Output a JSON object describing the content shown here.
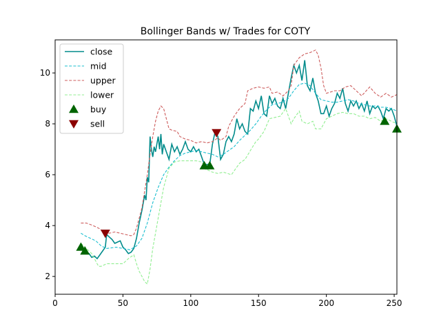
{
  "chart_data": {
    "type": "line",
    "title": "Bollinger Bands w/ Trades for COTY",
    "xlabel": "",
    "ylabel": "",
    "xlim": [
      0,
      252
    ],
    "ylim": [
      1.3,
      11.3
    ],
    "xticks": [
      0,
      50,
      100,
      150,
      200,
      250
    ],
    "yticks": [
      2,
      4,
      6,
      8,
      10
    ],
    "grid": false,
    "legend_position": "top-left",
    "series": [
      {
        "name": "close",
        "color": "#008b8b",
        "style": "solid",
        "points": [
          [
            19,
            3.1
          ],
          [
            21,
            3.05
          ],
          [
            23,
            2.95
          ],
          [
            25,
            2.9
          ],
          [
            27,
            2.75
          ],
          [
            29,
            2.8
          ],
          [
            31,
            2.7
          ],
          [
            33,
            2.85
          ],
          [
            35,
            3.0
          ],
          [
            37,
            3.15
          ],
          [
            38,
            3.65
          ],
          [
            40,
            3.55
          ],
          [
            42,
            3.45
          ],
          [
            44,
            3.3
          ],
          [
            46,
            3.35
          ],
          [
            48,
            3.4
          ],
          [
            50,
            3.15
          ],
          [
            52,
            3.05
          ],
          [
            54,
            2.9
          ],
          [
            56,
            2.95
          ],
          [
            58,
            3.1
          ],
          [
            60,
            3.5
          ],
          [
            62,
            4.1
          ],
          [
            64,
            4.6
          ],
          [
            66,
            5.2
          ],
          [
            67,
            5.0
          ],
          [
            68,
            5.9
          ],
          [
            69,
            5.7
          ],
          [
            70,
            7.5
          ],
          [
            71,
            7.0
          ],
          [
            72,
            6.7
          ],
          [
            73,
            7.1
          ],
          [
            74,
            6.9
          ],
          [
            75,
            7.2
          ],
          [
            76,
            7.5
          ],
          [
            77,
            7.0
          ],
          [
            78,
            7.6
          ],
          [
            79,
            6.8
          ],
          [
            80,
            7.2
          ],
          [
            82,
            6.9
          ],
          [
            84,
            6.6
          ],
          [
            86,
            7.2
          ],
          [
            88,
            6.9
          ],
          [
            90,
            7.1
          ],
          [
            92,
            6.8
          ],
          [
            94,
            7.0
          ],
          [
            96,
            7.3
          ],
          [
            98,
            7.0
          ],
          [
            100,
            6.9
          ],
          [
            102,
            7.1
          ],
          [
            104,
            6.9
          ],
          [
            106,
            7.0
          ],
          [
            108,
            6.7
          ],
          [
            110,
            6.4
          ],
          [
            112,
            6.4
          ],
          [
            114,
            6.4
          ],
          [
            116,
            7.2
          ],
          [
            118,
            7.7
          ],
          [
            120,
            7.5
          ],
          [
            122,
            6.6
          ],
          [
            124,
            6.8
          ],
          [
            126,
            7.3
          ],
          [
            128,
            7.5
          ],
          [
            130,
            7.3
          ],
          [
            132,
            7.6
          ],
          [
            134,
            8.2
          ],
          [
            136,
            7.8
          ],
          [
            138,
            8.0
          ],
          [
            140,
            7.7
          ],
          [
            142,
            7.6
          ],
          [
            144,
            8.6
          ],
          [
            146,
            8.5
          ],
          [
            148,
            8.9
          ],
          [
            150,
            8.6
          ],
          [
            152,
            9.1
          ],
          [
            154,
            8.4
          ],
          [
            156,
            8.3
          ],
          [
            158,
            9.1
          ],
          [
            160,
            8.8
          ],
          [
            162,
            9.0
          ],
          [
            164,
            8.7
          ],
          [
            166,
            8.6
          ],
          [
            168,
            9.0
          ],
          [
            170,
            8.6
          ],
          [
            172,
            9.2
          ],
          [
            174,
            9.8
          ],
          [
            176,
            10.3
          ],
          [
            178,
            10.0
          ],
          [
            180,
            10.3
          ],
          [
            182,
            9.7
          ],
          [
            184,
            10.5
          ],
          [
            186,
            9.5
          ],
          [
            188,
            9.3
          ],
          [
            190,
            9.8
          ],
          [
            192,
            9.2
          ],
          [
            194,
            8.9
          ],
          [
            196,
            8.4
          ],
          [
            198,
            8.4
          ],
          [
            200,
            8.7
          ],
          [
            202,
            8.3
          ],
          [
            204,
            8.6
          ],
          [
            206,
            8.8
          ],
          [
            208,
            9.2
          ],
          [
            210,
            9.0
          ],
          [
            212,
            9.4
          ],
          [
            214,
            8.8
          ],
          [
            216,
            8.5
          ],
          [
            218,
            8.9
          ],
          [
            220,
            8.7
          ],
          [
            222,
            8.9
          ],
          [
            224,
            8.6
          ],
          [
            226,
            8.8
          ],
          [
            228,
            8.5
          ],
          [
            230,
            8.9
          ],
          [
            232,
            8.4
          ],
          [
            234,
            8.7
          ],
          [
            236,
            8.6
          ],
          [
            238,
            8.7
          ],
          [
            240,
            8.5
          ],
          [
            242,
            8.2
          ],
          [
            244,
            8.6
          ],
          [
            246,
            8.5
          ],
          [
            248,
            8.6
          ],
          [
            250,
            8.3
          ],
          [
            252,
            7.9
          ]
        ]
      },
      {
        "name": "mid",
        "color": "#17becf",
        "style": "dashed",
        "points": [
          [
            19,
            3.7
          ],
          [
            22,
            3.6
          ],
          [
            26,
            3.5
          ],
          [
            30,
            3.4
          ],
          [
            34,
            3.2
          ],
          [
            38,
            3.1
          ],
          [
            45,
            3.15
          ],
          [
            50,
            3.1
          ],
          [
            55,
            3.05
          ],
          [
            60,
            3.2
          ],
          [
            64,
            3.5
          ],
          [
            68,
            4.1
          ],
          [
            72,
            4.9
          ],
          [
            76,
            5.5
          ],
          [
            80,
            6.0
          ],
          [
            84,
            6.3
          ],
          [
            88,
            6.55
          ],
          [
            92,
            6.75
          ],
          [
            96,
            6.85
          ],
          [
            100,
            6.9
          ],
          [
            104,
            6.95
          ],
          [
            108,
            6.9
          ],
          [
            112,
            6.85
          ],
          [
            116,
            6.8
          ],
          [
            120,
            6.7
          ],
          [
            124,
            6.8
          ],
          [
            128,
            6.95
          ],
          [
            132,
            7.1
          ],
          [
            136,
            7.35
          ],
          [
            140,
            7.55
          ],
          [
            144,
            7.75
          ],
          [
            148,
            8.0
          ],
          [
            152,
            8.3
          ],
          [
            156,
            8.55
          ],
          [
            160,
            8.75
          ],
          [
            164,
            8.8
          ],
          [
            168,
            8.85
          ],
          [
            172,
            9.0
          ],
          [
            176,
            9.3
          ],
          [
            180,
            9.55
          ],
          [
            184,
            9.6
          ],
          [
            188,
            9.5
          ],
          [
            192,
            9.2
          ],
          [
            196,
            8.95
          ],
          [
            200,
            8.9
          ],
          [
            204,
            8.85
          ],
          [
            208,
            8.85
          ],
          [
            212,
            8.9
          ],
          [
            216,
            8.95
          ],
          [
            220,
            8.9
          ],
          [
            224,
            8.8
          ],
          [
            228,
            8.75
          ],
          [
            232,
            8.7
          ],
          [
            236,
            8.7
          ],
          [
            240,
            8.65
          ],
          [
            244,
            8.65
          ],
          [
            248,
            8.6
          ],
          [
            252,
            8.5
          ]
        ]
      },
      {
        "name": "upper",
        "color": "#cd5c5c",
        "style": "dashed",
        "points": [
          [
            19,
            4.1
          ],
          [
            23,
            4.1
          ],
          [
            28,
            4.0
          ],
          [
            32,
            3.9
          ],
          [
            36,
            3.75
          ],
          [
            40,
            3.7
          ],
          [
            44,
            3.75
          ],
          [
            48,
            3.7
          ],
          [
            52,
            3.65
          ],
          [
            56,
            3.6
          ],
          [
            58,
            3.65
          ],
          [
            60,
            3.9
          ],
          [
            64,
            4.7
          ],
          [
            68,
            6.0
          ],
          [
            70,
            6.8
          ],
          [
            72,
            7.5
          ],
          [
            74,
            8.1
          ],
          [
            76,
            8.5
          ],
          [
            78,
            8.7
          ],
          [
            80,
            8.6
          ],
          [
            82,
            8.2
          ],
          [
            84,
            7.8
          ],
          [
            86,
            7.75
          ],
          [
            90,
            7.7
          ],
          [
            92,
            7.5
          ],
          [
            96,
            7.4
          ],
          [
            100,
            7.35
          ],
          [
            104,
            7.25
          ],
          [
            108,
            7.3
          ],
          [
            112,
            7.25
          ],
          [
            116,
            7.3
          ],
          [
            120,
            7.45
          ],
          [
            122,
            7.35
          ],
          [
            126,
            7.5
          ],
          [
            128,
            7.9
          ],
          [
            132,
            8.3
          ],
          [
            136,
            8.6
          ],
          [
            140,
            8.8
          ],
          [
            142,
            9.3
          ],
          [
            146,
            9.4
          ],
          [
            150,
            9.45
          ],
          [
            154,
            9.4
          ],
          [
            158,
            9.45
          ],
          [
            160,
            9.2
          ],
          [
            164,
            9.25
          ],
          [
            168,
            9.1
          ],
          [
            172,
            9.3
          ],
          [
            174,
            9.5
          ],
          [
            176,
            10.3
          ],
          [
            180,
            10.6
          ],
          [
            184,
            10.75
          ],
          [
            188,
            10.8
          ],
          [
            192,
            10.9
          ],
          [
            194,
            10.7
          ],
          [
            196,
            10.2
          ],
          [
            198,
            9.5
          ],
          [
            200,
            9.2
          ],
          [
            206,
            9.3
          ],
          [
            210,
            9.3
          ],
          [
            214,
            9.45
          ],
          [
            218,
            9.5
          ],
          [
            222,
            9.3
          ],
          [
            226,
            9.1
          ],
          [
            232,
            9.45
          ],
          [
            236,
            9.2
          ],
          [
            240,
            9.05
          ],
          [
            244,
            9.2
          ],
          [
            248,
            9.05
          ],
          [
            252,
            9.15
          ]
        ]
      },
      {
        "name": "lower",
        "color": "#90ee90",
        "style": "dashed",
        "points": [
          [
            19,
            3.3
          ],
          [
            23,
            3.1
          ],
          [
            27,
            2.9
          ],
          [
            30,
            2.6
          ],
          [
            32,
            2.4
          ],
          [
            34,
            2.4
          ],
          [
            38,
            2.5
          ],
          [
            42,
            2.5
          ],
          [
            46,
            2.5
          ],
          [
            50,
            2.5
          ],
          [
            54,
            2.7
          ],
          [
            58,
            2.85
          ],
          [
            60,
            2.5
          ],
          [
            62,
            2.2
          ],
          [
            64,
            2.0
          ],
          [
            66,
            1.8
          ],
          [
            68,
            1.7
          ],
          [
            70,
            2.3
          ],
          [
            72,
            3.1
          ],
          [
            76,
            4.3
          ],
          [
            80,
            5.5
          ],
          [
            84,
            6.25
          ],
          [
            88,
            6.5
          ],
          [
            92,
            6.55
          ],
          [
            100,
            6.55
          ],
          [
            104,
            6.55
          ],
          [
            108,
            6.5
          ],
          [
            112,
            6.2
          ],
          [
            116,
            6.1
          ],
          [
            120,
            6.05
          ],
          [
            124,
            6.1
          ],
          [
            130,
            6.0
          ],
          [
            136,
            6.45
          ],
          [
            140,
            6.6
          ],
          [
            144,
            6.95
          ],
          [
            148,
            7.3
          ],
          [
            150,
            7.4
          ],
          [
            154,
            7.7
          ],
          [
            158,
            8.2
          ],
          [
            162,
            8.25
          ],
          [
            166,
            8.3
          ],
          [
            170,
            8.6
          ],
          [
            174,
            8.0
          ],
          [
            176,
            8.2
          ],
          [
            180,
            8.5
          ],
          [
            182,
            8.1
          ],
          [
            186,
            8.0
          ],
          [
            190,
            8.1
          ],
          [
            192,
            7.8
          ],
          [
            196,
            7.8
          ],
          [
            200,
            8.2
          ],
          [
            204,
            8.3
          ],
          [
            208,
            8.4
          ],
          [
            212,
            8.45
          ],
          [
            216,
            8.4
          ],
          [
            220,
            8.4
          ],
          [
            224,
            8.3
          ],
          [
            228,
            8.3
          ],
          [
            232,
            8.2
          ],
          [
            236,
            8.25
          ],
          [
            240,
            8.1
          ],
          [
            244,
            8.2
          ],
          [
            248,
            8.1
          ],
          [
            252,
            8.0
          ]
        ]
      }
    ],
    "markers": [
      {
        "name": "buy",
        "color": "#006400",
        "shape": "triangle-up",
        "points": [
          [
            19,
            3.15
          ],
          [
            22,
            3.0
          ],
          [
            110,
            6.35
          ],
          [
            114,
            6.35
          ],
          [
            243,
            8.1
          ],
          [
            252,
            7.8
          ]
        ]
      },
      {
        "name": "sell",
        "color": "#8b0000",
        "shape": "triangle-down",
        "points": [
          [
            37,
            3.7
          ],
          [
            119,
            7.65
          ]
        ]
      }
    ]
  }
}
